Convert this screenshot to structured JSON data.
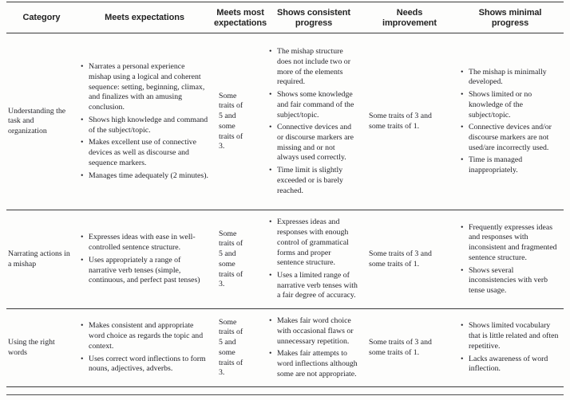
{
  "table": {
    "headers": [
      "Category",
      "Meets expectations",
      "Meets most expectations",
      "Shows consistent progress",
      "Needs improvement",
      "Shows minimal progress"
    ],
    "rows": [
      {
        "category": "Understanding the task and organization",
        "cells": [
          {
            "type": "bullets",
            "items": [
              "Narrates a personal experience mishap using a logical and coherent sequence: setting, beginning, climax, and finalizes with an amusing conclusion.",
              "Shows high knowledge and command of the subject/topic.",
              "Makes excellent use of connective devices as well as discourse and sequence markers.",
              "Manages time adequately (2 minutes)."
            ]
          },
          {
            "type": "text",
            "text": "Some traits of 5 and some traits of 3."
          },
          {
            "type": "bullets",
            "items": [
              "The mishap structure does not include two or more of the elements required.",
              "Shows some knowledge and fair command of the subject/topic.",
              "Connective devices and or discourse markers are missing and or not always used correctly.",
              "Time limit is slightly exceeded or is barely reached."
            ]
          },
          {
            "type": "text",
            "text": "Some traits of 3 and some traits of 1."
          },
          {
            "type": "bullets",
            "items": [
              "The mishap is minimally developed.",
              "Shows limited or no knowledge of the subject/topic.",
              "Connective devices and/or discourse markers are not used/are incorrectly used.",
              "Time is managed inappropriately."
            ]
          }
        ]
      },
      {
        "category": "Narrating actions in a mishap",
        "cells": [
          {
            "type": "bullets",
            "items": [
              "Expresses ideas with ease in well-controlled sentence structure.",
              "Uses appropriately a range of narrative verb tenses (simple, continuous, and perfect past tenses)"
            ]
          },
          {
            "type": "text",
            "text": "Some traits of 5 and some traits of 3."
          },
          {
            "type": "bullets",
            "items": [
              "Expresses ideas and responses with enough control of grammatical forms and proper sentence structure.",
              "Uses a limited range of narrative verb tenses with a fair degree of accuracy."
            ]
          },
          {
            "type": "text",
            "text": "Some traits of 3 and some traits of 1."
          },
          {
            "type": "bullets",
            "items": [
              "Frequently expresses ideas and responses with inconsistent and fragmented sentence structure.",
              "Shows several inconsistencies with verb tense usage."
            ]
          }
        ]
      },
      {
        "category": "Using the right words",
        "cells": [
          {
            "type": "bullets",
            "items": [
              "Makes consistent and appropriate word choice as regards the topic and context.",
              "Uses correct word inflections to form nouns, adjectives, adverbs."
            ]
          },
          {
            "type": "text",
            "text": "Some traits of 5 and some traits of 3."
          },
          {
            "type": "bullets",
            "items": [
              "Makes fair word choice with occasional flaws or unnecessary repetition.",
              "Makes fair attempts to word inflections although some are not appropriate."
            ]
          },
          {
            "type": "text",
            "text": "Some traits of 3 and some traits of 1."
          },
          {
            "type": "bullets",
            "items": [
              "Shows limited vocabulary that is little related and often repetitive.",
              "Lacks awareness of word inflection."
            ]
          }
        ]
      }
    ]
  }
}
